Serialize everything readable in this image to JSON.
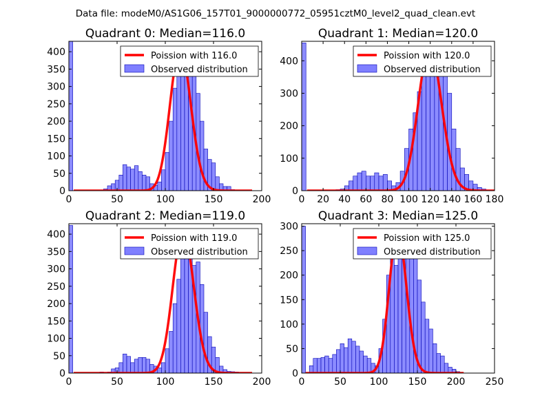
{
  "figure": {
    "suptitle": "Data file: modeM0/AS1G06_157T01_9000000772_05951cztM0_level2_quad_clean.evt"
  },
  "colors": {
    "poisson": "#ff0000",
    "bar_fill": "#7f7fff",
    "bar_edge": "#0000b3"
  },
  "chart_data": [
    {
      "type": "bar",
      "title": "Quadrant 0: Median=116.0",
      "xlim": [
        0,
        200
      ],
      "ylim": [
        0,
        430
      ],
      "xticks": [
        0,
        50,
        100,
        150,
        200
      ],
      "yticks": [
        0,
        50,
        100,
        150,
        200,
        250,
        300,
        350,
        400
      ],
      "legend": {
        "placement": "upper-right",
        "line_label": "Poission with 116.0",
        "bar_label": "Observed distribution"
      },
      "bin_width": 4,
      "bins": [
        [
          0,
          4,
          430
        ],
        [
          36,
          4,
          5
        ],
        [
          40,
          4,
          14
        ],
        [
          44,
          4,
          20
        ],
        [
          48,
          4,
          30
        ],
        [
          52,
          4,
          45
        ],
        [
          56,
          4,
          75
        ],
        [
          60,
          4,
          68
        ],
        [
          64,
          4,
          62
        ],
        [
          68,
          4,
          72
        ],
        [
          72,
          4,
          55
        ],
        [
          76,
          4,
          45
        ],
        [
          80,
          4,
          40
        ],
        [
          84,
          4,
          20
        ],
        [
          88,
          4,
          15
        ],
        [
          92,
          4,
          25
        ],
        [
          96,
          4,
          60
        ],
        [
          100,
          4,
          110
        ],
        [
          104,
          4,
          200
        ],
        [
          108,
          4,
          295
        ],
        [
          112,
          4,
          350
        ],
        [
          116,
          4,
          400
        ],
        [
          120,
          4,
          390
        ],
        [
          124,
          4,
          345
        ],
        [
          128,
          4,
          350
        ],
        [
          132,
          4,
          280
        ],
        [
          136,
          4,
          200
        ],
        [
          140,
          4,
          120
        ],
        [
          144,
          4,
          90
        ],
        [
          148,
          4,
          80
        ],
        [
          152,
          4,
          40
        ],
        [
          156,
          4,
          20
        ],
        [
          160,
          4,
          12
        ],
        [
          164,
          4,
          12
        ],
        [
          168,
          4,
          3
        ]
      ],
      "poisson": {
        "mean": 116.0,
        "amplitude": 410,
        "x_start": 5,
        "x_end": 190
      }
    },
    {
      "type": "bar",
      "title": "Quadrant 1: Median=120.0",
      "xlim": [
        0,
        180
      ],
      "ylim": [
        0,
        460
      ],
      "xticks": [
        0,
        20,
        40,
        60,
        80,
        100,
        120,
        140,
        160,
        180
      ],
      "yticks": [
        0,
        100,
        200,
        300,
        400
      ],
      "legend": {
        "placement": "upper-right",
        "line_label": "Poission with 120.0",
        "bar_label": "Observed distribution"
      },
      "bin_width": 4,
      "bins": [
        [
          0,
          4,
          455
        ],
        [
          32,
          4,
          3
        ],
        [
          36,
          4,
          5
        ],
        [
          40,
          4,
          15
        ],
        [
          44,
          4,
          30
        ],
        [
          48,
          4,
          45
        ],
        [
          52,
          4,
          55
        ],
        [
          56,
          4,
          60
        ],
        [
          60,
          4,
          45
        ],
        [
          64,
          4,
          45
        ],
        [
          68,
          4,
          55
        ],
        [
          72,
          4,
          45
        ],
        [
          76,
          4,
          50
        ],
        [
          80,
          4,
          30
        ],
        [
          84,
          4,
          15
        ],
        [
          88,
          4,
          25
        ],
        [
          92,
          4,
          60
        ],
        [
          96,
          4,
          130
        ],
        [
          100,
          4,
          190
        ],
        [
          104,
          4,
          240
        ],
        [
          108,
          4,
          305
        ],
        [
          112,
          4,
          380
        ],
        [
          116,
          4,
          440
        ],
        [
          120,
          4,
          400
        ],
        [
          124,
          4,
          415
        ],
        [
          128,
          4,
          360
        ],
        [
          132,
          4,
          430
        ],
        [
          136,
          4,
          300
        ],
        [
          140,
          4,
          190
        ],
        [
          144,
          4,
          130
        ],
        [
          148,
          4,
          70
        ],
        [
          152,
          4,
          50
        ],
        [
          156,
          4,
          30
        ],
        [
          160,
          4,
          20
        ],
        [
          164,
          4,
          10
        ],
        [
          168,
          4,
          5
        ]
      ],
      "poisson": {
        "mean": 120.0,
        "amplitude": 440,
        "x_start": 5,
        "x_end": 180
      }
    },
    {
      "type": "bar",
      "title": "Quadrant 2: Median=119.0",
      "xlim": [
        0,
        200
      ],
      "ylim": [
        0,
        430
      ],
      "xticks": [
        0,
        50,
        100,
        150,
        200
      ],
      "yticks": [
        0,
        50,
        100,
        150,
        200,
        250,
        300,
        350,
        400
      ],
      "legend": {
        "placement": "upper-right",
        "line_label": "Poission with 119.0",
        "bar_label": "Observed distribution"
      },
      "bin_width": 4,
      "bins": [
        [
          0,
          4,
          425
        ],
        [
          32,
          4,
          3
        ],
        [
          40,
          4,
          3
        ],
        [
          44,
          4,
          12
        ],
        [
          48,
          4,
          15
        ],
        [
          52,
          4,
          30
        ],
        [
          56,
          4,
          55
        ],
        [
          60,
          4,
          48
        ],
        [
          64,
          4,
          30
        ],
        [
          68,
          4,
          40
        ],
        [
          72,
          4,
          45
        ],
        [
          76,
          4,
          45
        ],
        [
          80,
          4,
          40
        ],
        [
          84,
          4,
          25
        ],
        [
          88,
          4,
          20
        ],
        [
          92,
          4,
          15
        ],
        [
          96,
          4,
          30
        ],
        [
          100,
          4,
          70
        ],
        [
          104,
          4,
          120
        ],
        [
          108,
          4,
          200
        ],
        [
          112,
          4,
          270
        ],
        [
          116,
          4,
          380
        ],
        [
          120,
          4,
          415
        ],
        [
          124,
          4,
          355
        ],
        [
          128,
          4,
          310
        ],
        [
          132,
          4,
          320
        ],
        [
          136,
          4,
          255
        ],
        [
          140,
          4,
          175
        ],
        [
          144,
          4,
          105
        ],
        [
          148,
          4,
          75
        ],
        [
          152,
          4,
          45
        ],
        [
          156,
          4,
          20
        ],
        [
          160,
          4,
          10
        ],
        [
          164,
          4,
          5
        ],
        [
          168,
          4,
          4
        ],
        [
          172,
          4,
          3
        ]
      ],
      "poisson": {
        "mean": 119.0,
        "amplitude": 410,
        "x_start": 5,
        "x_end": 190
      }
    },
    {
      "type": "bar",
      "title": "Quadrant 3: Median=125.0",
      "xlim": [
        0,
        250
      ],
      "ylim": [
        0,
        305
      ],
      "xticks": [
        0,
        50,
        100,
        150,
        200,
        250
      ],
      "yticks": [
        0,
        50,
        100,
        150,
        200,
        250,
        300
      ],
      "legend": {
        "placement": "upper-right",
        "line_label": "Poission with 125.0",
        "bar_label": "Observed distribution"
      },
      "bin_width": 5,
      "bins": [
        [
          0,
          5,
          300
        ],
        [
          10,
          5,
          15
        ],
        [
          15,
          5,
          30
        ],
        [
          20,
          5,
          30
        ],
        [
          25,
          5,
          32
        ],
        [
          30,
          5,
          35
        ],
        [
          35,
          5,
          30
        ],
        [
          40,
          5,
          38
        ],
        [
          45,
          5,
          48
        ],
        [
          50,
          5,
          60
        ],
        [
          55,
          5,
          52
        ],
        [
          60,
          5,
          70
        ],
        [
          65,
          5,
          65
        ],
        [
          70,
          5,
          55
        ],
        [
          75,
          5,
          45
        ],
        [
          80,
          5,
          35
        ],
        [
          85,
          5,
          30
        ],
        [
          90,
          5,
          20
        ],
        [
          95,
          5,
          15
        ],
        [
          100,
          5,
          50
        ],
        [
          105,
          5,
          110
        ],
        [
          110,
          5,
          200
        ],
        [
          115,
          5,
          245
        ],
        [
          120,
          5,
          220
        ],
        [
          125,
          5,
          270
        ],
        [
          130,
          5,
          240
        ],
        [
          135,
          5,
          260
        ],
        [
          140,
          5,
          245
        ],
        [
          145,
          5,
          265
        ],
        [
          150,
          5,
          190
        ],
        [
          155,
          5,
          145
        ],
        [
          160,
          5,
          110
        ],
        [
          165,
          5,
          90
        ],
        [
          170,
          5,
          60
        ],
        [
          175,
          5,
          40
        ],
        [
          180,
          5,
          35
        ],
        [
          185,
          5,
          20
        ],
        [
          190,
          5,
          12
        ],
        [
          195,
          5,
          8
        ],
        [
          200,
          5,
          3
        ]
      ],
      "poisson": {
        "mean": 125.0,
        "amplitude": 290,
        "x_start": 5,
        "x_end": 210
      }
    }
  ]
}
